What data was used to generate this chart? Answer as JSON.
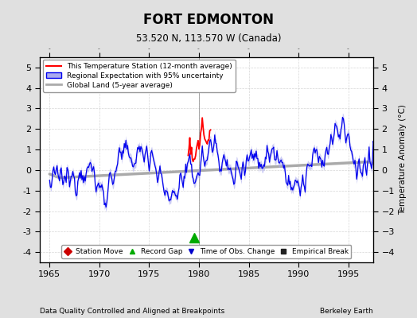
{
  "title": "FORT EDMONTON",
  "subtitle": "53.520 N, 113.570 W (Canada)",
  "ylabel": "Temperature Anomaly (°C)",
  "xlabel_footer": "Data Quality Controlled and Aligned at Breakpoints",
  "footer_right": "Berkeley Earth",
  "xlim": [
    1964.0,
    1997.5
  ],
  "ylim": [
    -4.5,
    5.5
  ],
  "yticks": [
    -4,
    -3,
    -2,
    -1,
    0,
    1,
    2,
    3,
    4,
    5
  ],
  "xticks": [
    1965,
    1970,
    1975,
    1980,
    1985,
    1990,
    1995
  ],
  "bg_color": "#e0e0e0",
  "plot_bg_color": "#ffffff",
  "station_color": "#ff0000",
  "regional_color": "#0000ee",
  "regional_fill_color": "#aaaaee",
  "global_color": "#aaaaaa",
  "grid_color": "#cccccc",
  "record_gap_x": 1979.5,
  "record_gap_y": -3.3,
  "marker_items": [
    {
      "label": "Station Move",
      "color": "#cc0000",
      "marker": "D"
    },
    {
      "label": "Record Gap",
      "color": "#00aa00",
      "marker": "^"
    },
    {
      "label": "Time of Obs. Change",
      "color": "#0000cc",
      "marker": "v"
    },
    {
      "label": "Empirical Break",
      "color": "#222222",
      "marker": "s"
    }
  ]
}
